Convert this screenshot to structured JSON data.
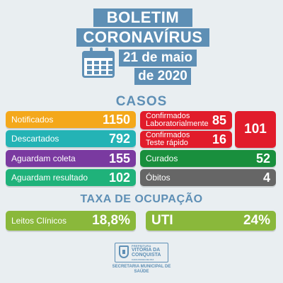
{
  "header": {
    "title_line1": "BOLETIM",
    "title_line2": "CORONAVÍRUS",
    "date_line1": "21 de maio",
    "date_line2": "de 2020",
    "calendar_icon": "calendar-icon"
  },
  "casos": {
    "title": "CASOS",
    "notificados": {
      "label": "Notificados",
      "value": "1150"
    },
    "descartados": {
      "label": "Descartados",
      "value": "792"
    },
    "aguardam_coleta": {
      "label": "Aguardam coleta",
      "value": "155"
    },
    "aguardam_resultado": {
      "label": "Aguardam resultado",
      "value": "102"
    },
    "confirmados_lab": {
      "label_line1": "Confirmados",
      "label_line2": "Laboratorialmente",
      "value": "85"
    },
    "confirmados_teste": {
      "label_line1": "Confirmados",
      "label_line2": "Teste rápido",
      "value": "16"
    },
    "confirmados_total": "101",
    "curados": {
      "label": "Curados",
      "value": "52"
    },
    "obitos": {
      "label": "Óbitos",
      "value": "4"
    }
  },
  "ocupacao": {
    "title": "TAXA DE OCUPAÇÃO",
    "leitos": {
      "label": "Leitos Clínicos",
      "value": "18,8%"
    },
    "uti": {
      "label": "UTI",
      "value": "24%"
    }
  },
  "footer": {
    "prefeitura": "PREFEITURA",
    "vitoria_line1": "VITÓRIA DA",
    "vitoria_line2": "CONQUISTA",
    "lema": "CADA PASSO DE PAZ",
    "secretaria_line1": "SECRETARIA MUNICIPAL DE",
    "secretaria_line2": "SAÚDE"
  },
  "colors": {
    "title_blue": "#5e8fb5",
    "orange": "#f4a81b",
    "teal": "#24b3b5",
    "purple": "#7a3aa0",
    "green": "#1fb27a",
    "red": "#e11c2b",
    "dark_green": "#198f3d",
    "gray": "#666666",
    "lime": "#8ab83b"
  }
}
